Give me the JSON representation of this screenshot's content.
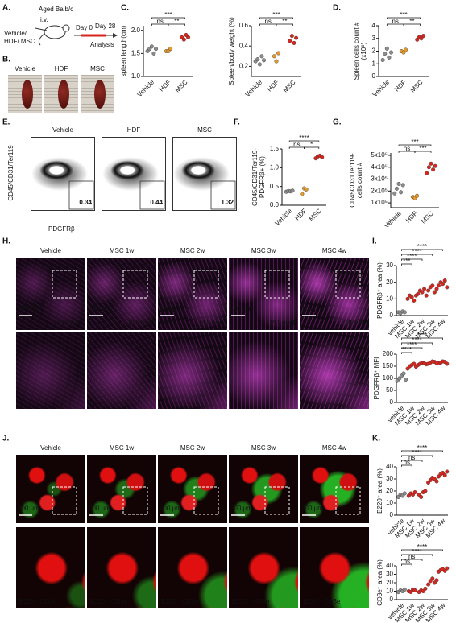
{
  "panel_labels": [
    "A.",
    "B.",
    "C.",
    "D.",
    "E.",
    "F.",
    "G.",
    "H.",
    "I.",
    "J.",
    "K."
  ],
  "schematic": {
    "mouse": "Aged Balb/c",
    "route": "i.v.",
    "groups": [
      "Vehicle/",
      "HDF/ MSC"
    ],
    "day0": "Day 0",
    "day28": "Day 28",
    "analysis": "Analysis"
  },
  "spleen_photos": [
    "Vehicle",
    "HDF",
    "MSC"
  ],
  "flow": {
    "y_label": "CD45/CD31/Ter119",
    "x_label": "PDGFRβ",
    "samples": [
      {
        "name": "Vehicle",
        "percent": 0.34
      },
      {
        "name": "HDF",
        "percent": 0.44
      },
      {
        "name": "MSC",
        "percent": 1.32
      }
    ]
  },
  "pdgfrb_images": {
    "columns": [
      "Vehicle",
      "MSC 1w",
      "MSC 2w",
      "MSC 3w",
      "MSC 4w"
    ],
    "scale_bar": "100 µm",
    "stain": "PDGFRβ"
  },
  "b220_images": {
    "columns": [
      "Vehicle",
      "MSC 1w",
      "MSC 2w",
      "MSC 3w",
      "MSC 4w"
    ],
    "scale_bar": "200 µm",
    "stains": [
      "B220",
      "CD3e"
    ]
  },
  "chart_data": [
    {
      "type": "dot",
      "y_label": [
        "spleen length(cm)"
      ],
      "series": [
        {
          "name": "Vehicle",
          "color": "#8c8c8c",
          "values": [
            1.55,
            1.6,
            1.65,
            1.5,
            1.6
          ]
        },
        {
          "name": "HDF",
          "color": "#e69a2e",
          "values": [
            1.55,
            1.55,
            1.6
          ]
        },
        {
          "name": "MSC",
          "color": "#d7261e",
          "values": [
            1.85,
            1.8,
            1.9,
            1.85
          ]
        }
      ],
      "ylim": [
        1.0,
        2.1
      ],
      "yticks": [
        {
          "value": 1,
          "label": "1.0"
        },
        1.5,
        {
          "value": 2,
          "label": "2.0"
        }
      ],
      "annotations": [
        "***",
        "ns",
        "**"
      ]
    },
    {
      "type": "dot",
      "y_label": [
        "Spleen/body weight (%)"
      ],
      "series": [
        {
          "name": "Vehicle",
          "color": "#8c8c8c",
          "values": [
            0.25,
            0.27,
            0.22,
            0.3,
            0.26
          ]
        },
        {
          "name": "HDF",
          "color": "#e69a2e",
          "values": [
            0.3,
            0.25,
            0.33
          ]
        },
        {
          "name": "MSC",
          "color": "#d7261e",
          "values": [
            0.45,
            0.5,
            0.43,
            0.48
          ]
        }
      ],
      "ylim": [
        0.1,
        0.6
      ],
      "yticks": [
        0.2,
        0.4,
        0.6
      ],
      "annotations": [
        "***",
        "ns",
        "**"
      ]
    },
    {
      "type": "dot",
      "y_label": [
        "Spleen  cells count #",
        "(x10⁸)"
      ],
      "series": [
        {
          "name": "Vehicle",
          "color": "#8c8c8c",
          "values": [
            1.3,
            1.8,
            2.2,
            1.5,
            1.9
          ]
        },
        {
          "name": "HDF",
          "color": "#e69a2e",
          "values": [
            2.0,
            1.9,
            2.1
          ]
        },
        {
          "name": "MSC",
          "color": "#d7261e",
          "values": [
            2.9,
            3.1,
            3.0,
            3.2
          ]
        }
      ],
      "ylim": [
        0,
        4
      ],
      "yticks": [
        0,
        1,
        2,
        3,
        4
      ],
      "annotations": [
        "***",
        "ns",
        "**"
      ]
    },
    {
      "type": "dot",
      "y_label": [
        "CD45/CD31/Ter119-",
        "PDGFRβ+ (%)"
      ],
      "series": [
        {
          "name": "Vehicle",
          "color": "#8c8c8c",
          "values": [
            0.36,
            0.38,
            0.37,
            0.39
          ]
        },
        {
          "name": "HDF",
          "color": "#e69a2e",
          "values": [
            0.3,
            0.45,
            0.42
          ]
        },
        {
          "name": "MSC",
          "color": "#d7261e",
          "values": [
            1.25,
            1.3,
            1.32,
            1.28
          ]
        }
      ],
      "ylim": [
        0,
        1.5
      ],
      "yticks": [
        {
          "value": 0,
          "label": "0.0"
        },
        0.5,
        {
          "value": 1,
          "label": "1.0"
        },
        1.5
      ],
      "annotations": [
        "****",
        "ns",
        "*"
      ]
    },
    {
      "type": "dot",
      "y_label": [
        "CD45CD31Ter119-",
        "cells count #"
      ],
      "series": [
        {
          "name": "Vehicle",
          "color": "#8c8c8c",
          "values": [
            180000,
            220000,
            260000,
            190000,
            250000
          ]
        },
        {
          "name": "HDF",
          "color": "#e69a2e",
          "values": [
            150000,
            140000,
            160000
          ]
        },
        {
          "name": "MSC",
          "color": "#d7261e",
          "values": [
            350000,
            400000,
            430000,
            380000,
            410000
          ]
        }
      ],
      "ylim": [
        60000,
        520000
      ],
      "yticks": [
        {
          "value": 100000,
          "label": "1x10⁵"
        },
        {
          "value": 200000,
          "label": "2x10⁵"
        },
        {
          "value": 300000,
          "label": "3x10⁵"
        },
        {
          "value": 400000,
          "label": "4x10⁵"
        },
        {
          "value": 500000,
          "label": "5x10⁵"
        }
      ],
      "annotations": [
        "***",
        "ns",
        "***"
      ]
    },
    {
      "type": "dot",
      "y_label": [
        "PDGFRβ⁺ area (%)"
      ],
      "series": [
        {
          "name": "vehicle",
          "color": "#8c8c8c",
          "values": [
            2,
            1.5,
            2.5,
            2
          ]
        },
        {
          "name": "MSC 1w",
          "color": "#d7261e",
          "values": [
            10,
            12,
            11,
            9,
            12
          ]
        },
        {
          "name": "MSC 2w",
          "color": "#d7261e",
          "values": [
            13,
            15,
            14,
            16,
            12
          ]
        },
        {
          "name": "MSC 3w",
          "color": "#d7261e",
          "values": [
            15,
            17,
            18,
            14,
            16
          ]
        },
        {
          "name": "MSC 4w",
          "color": "#d7261e",
          "values": [
            18,
            20,
            19,
            21,
            17
          ]
        }
      ],
      "ylim": [
        0,
        30
      ],
      "yticks": [
        0,
        10,
        20,
        30
      ],
      "annotations": [
        "****",
        "****",
        "****",
        "***"
      ]
    },
    {
      "type": "dot",
      "y_label": [
        "PDGFRβ⁺ MFI"
      ],
      "series": [
        {
          "name": "vehicle",
          "color": "#8c8c8c",
          "values": [
            90,
            100,
            110,
            120,
            95
          ]
        },
        {
          "name": "MSC 1w",
          "color": "#d7261e",
          "values": [
            140,
            150,
            155,
            160,
            148
          ]
        },
        {
          "name": "MSC 2w",
          "color": "#d7261e",
          "values": [
            155,
            160,
            165,
            162,
            158
          ]
        },
        {
          "name": "MSC 3w",
          "color": "#d7261e",
          "values": [
            160,
            165,
            170,
            168,
            163
          ]
        },
        {
          "name": "MSC 4w",
          "color": "#d7261e",
          "values": [
            162,
            165,
            170,
            168,
            160
          ]
        }
      ],
      "ylim": [
        0,
        200
      ],
      "yticks": [
        0,
        50,
        100,
        150,
        200
      ],
      "annotations": [
        "****",
        "****",
        "****",
        "****"
      ]
    },
    {
      "type": "dot",
      "y_label": [
        "B220⁺ area (%)"
      ],
      "series": [
        {
          "name": "vehicle",
          "color": "#8c8c8c",
          "values": [
            15,
            17,
            16,
            18
          ]
        },
        {
          "name": "MSC 1w",
          "color": "#d7261e",
          "values": [
            16,
            18,
            17,
            19
          ]
        },
        {
          "name": "MSC 2w",
          "color": "#d7261e",
          "values": [
            17,
            15,
            19,
            20
          ]
        },
        {
          "name": "MSC 3w",
          "color": "#d7261e",
          "values": [
            27,
            29,
            31,
            30,
            28
          ]
        },
        {
          "name": "MSC 4w",
          "color": "#d7261e",
          "values": [
            32,
            34,
            35,
            33,
            36
          ]
        }
      ],
      "ylim": [
        0,
        40
      ],
      "yticks": [
        0,
        10,
        20,
        30,
        40
      ],
      "annotations": [
        "****",
        "****",
        "ns",
        "ns"
      ]
    },
    {
      "type": "dot",
      "y_label": [
        "CD3e⁺ area (%)"
      ],
      "series": [
        {
          "name": "vehicle",
          "color": "#8c8c8c",
          "values": [
            9,
            11,
            10,
            12
          ]
        },
        {
          "name": "MSC 1w",
          "color": "#d7261e",
          "values": [
            10,
            9,
            12,
            11
          ]
        },
        {
          "name": "MSC 2w",
          "color": "#d7261e",
          "values": [
            9,
            11,
            10,
            13
          ]
        },
        {
          "name": "MSC 3w",
          "color": "#d7261e",
          "values": [
            18,
            22,
            25,
            20,
            23
          ]
        },
        {
          "name": "MSC 4w",
          "color": "#d7261e",
          "values": [
            33,
            35,
            36,
            34,
            37
          ]
        }
      ],
      "ylim": [
        0,
        40
      ],
      "yticks": [
        0,
        10,
        20,
        30,
        40
      ],
      "annotations": [
        "****",
        "****",
        "ns",
        "ns"
      ]
    }
  ]
}
